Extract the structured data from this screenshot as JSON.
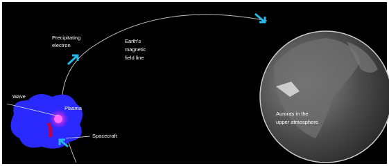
{
  "labels": {
    "precipitating_electron": [
      "Precipitating",
      "electron"
    ],
    "field_line": [
      "Earth's",
      "magnetic",
      "field line"
    ],
    "wave": [
      "Wave"
    ],
    "plasma": [
      "Plasma"
    ],
    "spacecraft": [
      "Spacecraft"
    ],
    "auroras": [
      "Auroras in the",
      "upper atmosphere"
    ]
  }
}
